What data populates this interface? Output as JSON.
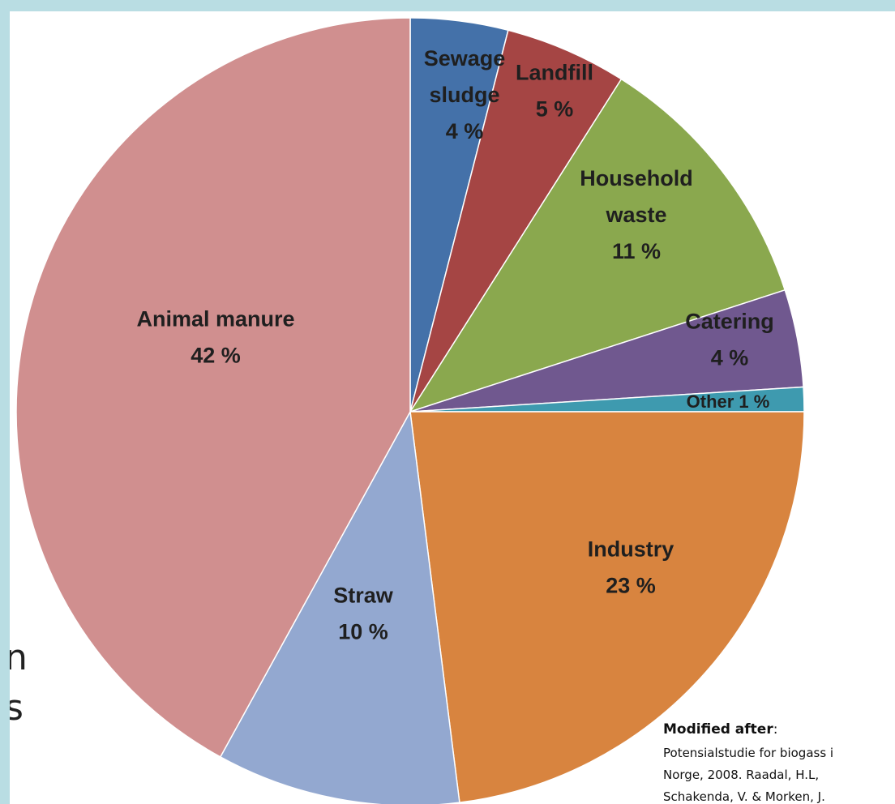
{
  "chart_data": {
    "type": "pie",
    "title": "",
    "slices": [
      {
        "label_lines": [
          "Sewage",
          "sludge"
        ],
        "value": 4,
        "value_text": "4 %",
        "color": "#4471a9"
      },
      {
        "label_lines": [
          "Landfill"
        ],
        "value": 5,
        "value_text": "5 %",
        "color": "#a54544"
      },
      {
        "label_lines": [
          "Household",
          "waste"
        ],
        "value": 11,
        "value_text": "11 %",
        "color": "#8aa84e"
      },
      {
        "label_lines": [
          "Catering"
        ],
        "value": 4,
        "value_text": "4 %",
        "color": "#70588f"
      },
      {
        "label_lines": [
          "Other"
        ],
        "value": 1,
        "value_text": "1 %",
        "color": "#3e9aaf"
      },
      {
        "label_lines": [
          "Industry"
        ],
        "value": 23,
        "value_text": "23 %",
        "color": "#d8843f"
      },
      {
        "label_lines": [
          "Straw"
        ],
        "value": 10,
        "value_text": "10 %",
        "color": "#93a8d0"
      },
      {
        "label_lines": [
          "Animal manure"
        ],
        "value": 42,
        "value_text": "42 %",
        "color": "#d08f8f"
      }
    ]
  },
  "background_fragments": [
    "n",
    "s"
  ],
  "source_note": {
    "title": "Modified after",
    "title_suffix": ":",
    "body": "Potensialstudie  for biogass i\nNorge, 2008. Raadal, H.L,\nSchakenda, V. & Morken, J."
  }
}
